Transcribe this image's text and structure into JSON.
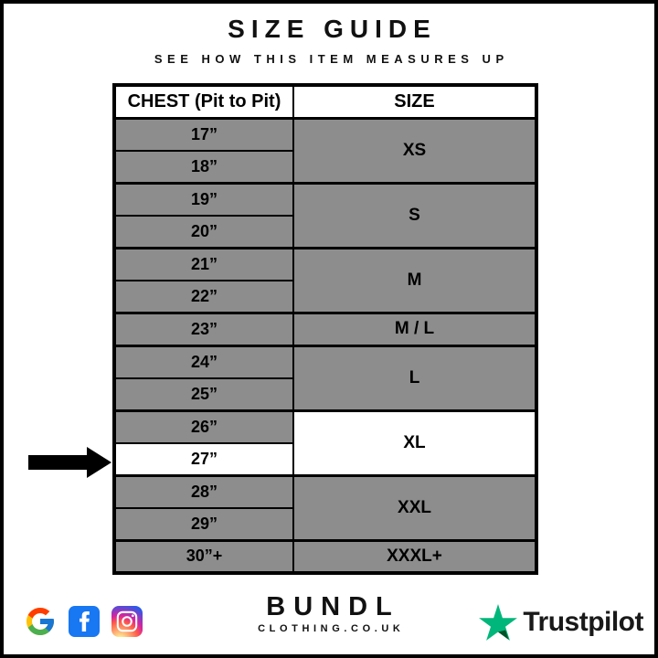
{
  "page": {
    "title": "SIZE GUIDE",
    "subtitle": "SEE HOW THIS ITEM MEASURES UP"
  },
  "table": {
    "headers": [
      "CHEST (Pit to Pit)",
      "SIZE"
    ],
    "groups": [
      {
        "size": "XS",
        "measurements": [
          "17”",
          "18”"
        ],
        "highlighted": false
      },
      {
        "size": "S",
        "measurements": [
          "19”",
          "20”"
        ],
        "highlighted": false
      },
      {
        "size": "M",
        "measurements": [
          "21”",
          "22”"
        ],
        "highlighted": false
      },
      {
        "size": "M / L",
        "measurements": [
          "23”"
        ],
        "highlighted": false
      },
      {
        "size": "L",
        "measurements": [
          "24”",
          "25”"
        ],
        "highlighted": false
      },
      {
        "size": "XL",
        "measurements": [
          "26”",
          "27”"
        ],
        "highlighted": true,
        "highlighted_measurement": "27”"
      },
      {
        "size": "XXL",
        "measurements": [
          "28”",
          "29”"
        ],
        "highlighted": false
      },
      {
        "size": "XXXL+",
        "measurements": [
          "30”+"
        ],
        "highlighted": false
      }
    ],
    "pointer_target": "27”"
  },
  "footer": {
    "brand": {
      "name": "BUNDL",
      "domain": "CLOTHING.CO.UK"
    },
    "social_icons": [
      "google-icon",
      "facebook-icon",
      "instagram-icon"
    ],
    "trustpilot_label": "Trustpilot"
  },
  "colors": {
    "row_gray": "#8d8d8d",
    "highlight_white": "#ffffff",
    "border_black": "#000000",
    "facebook_blue": "#1877F2",
    "trustpilot_green": "#00B67A",
    "trustpilot_dark_green": "#005128"
  },
  "chart_data": {
    "type": "table",
    "title": "SIZE GUIDE",
    "subtitle": "SEE HOW THIS ITEM MEASURES UP",
    "columns": [
      "CHEST (Pit to Pit)",
      "SIZE"
    ],
    "rows": [
      [
        "17”",
        "XS"
      ],
      [
        "18”",
        "XS"
      ],
      [
        "19”",
        "S"
      ],
      [
        "20”",
        "S"
      ],
      [
        "21”",
        "M"
      ],
      [
        "22”",
        "M"
      ],
      [
        "23”",
        "M / L"
      ],
      [
        "24”",
        "L"
      ],
      [
        "25”",
        "L"
      ],
      [
        "26”",
        "XL"
      ],
      [
        "27”",
        "XL"
      ],
      [
        "28”",
        "XXL"
      ],
      [
        "29”",
        "XXL"
      ],
      [
        "30”+",
        "XXXL+"
      ]
    ],
    "highlighted_row": "27”",
    "layout": "merged size cells spanning measurement rows; highlighted row shown white with black arrow pointer"
  }
}
